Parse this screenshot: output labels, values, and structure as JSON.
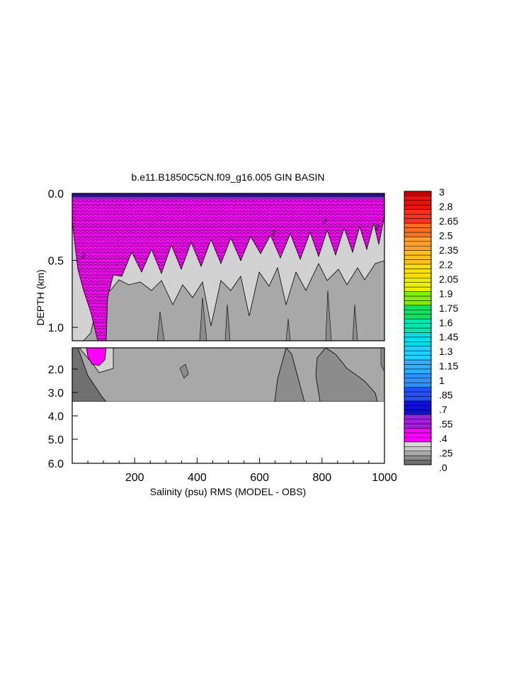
{
  "chart_data": {
    "type": "heatmap",
    "title": "b.e11.B1850C5CN.f09_g16.005 GIN BASIN",
    "xlabel": "Salinity (psu) RMS (MODEL - OBS)",
    "ylabel": "DEPTH (km)",
    "xlim": [
      0,
      1000
    ],
    "x_ticks": [
      "200",
      "400",
      "600",
      "800",
      "1000"
    ],
    "upper_panel": {
      "ylim": [
        0.0,
        1.1
      ],
      "y_ticks": [
        "0.0",
        "0.5",
        "1.0"
      ]
    },
    "lower_panel": {
      "ylim": [
        1.1,
        6.0
      ],
      "y_ticks": [
        "2.0",
        "3.0",
        "4.0",
        "5.0",
        "6.0"
      ],
      "data_bottom_km": 3.4
    },
    "colorbar": {
      "min": 0.0,
      "max": 3.0,
      "step": 0.05,
      "labels": [
        "3",
        "2.8",
        "2.65",
        "2.5",
        "2.35",
        "2.2",
        "2.05",
        "1.9",
        "1.75",
        "1.6",
        "1.45",
        "1.3",
        "1.15",
        "1",
        ".85",
        ".7",
        ".55",
        ".4",
        ".25",
        ".0"
      ]
    },
    "contour_labels": [
      "2",
      "2",
      "2",
      "2"
    ]
  }
}
